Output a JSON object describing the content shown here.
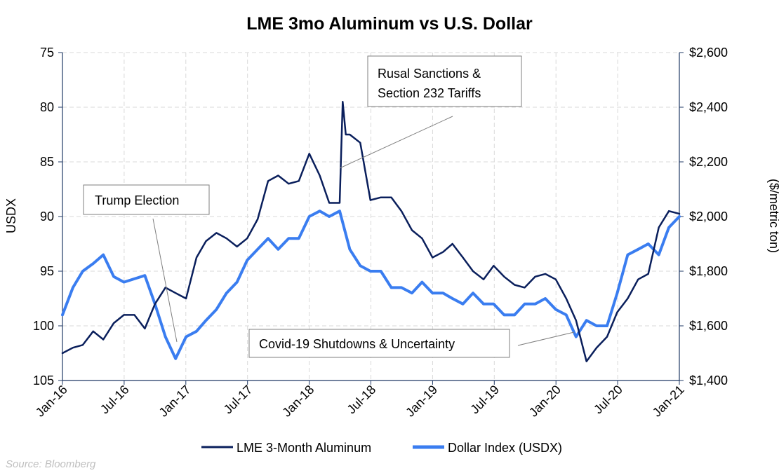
{
  "chart_data": {
    "type": "line",
    "title": "LME 3mo Aluminum vs U.S. Dollar",
    "source": "Source: Bloomberg",
    "x_ticks": [
      "Jan-16",
      "Jul-16",
      "Jan-17",
      "Jul-17",
      "Jan-18",
      "Jul-18",
      "Jan-19",
      "Jul-19",
      "Jan-20",
      "Jul-20",
      "Jan-21"
    ],
    "x_range": [
      "2016-01-01",
      "2021-01-01"
    ],
    "y_left": {
      "label": "USDX",
      "range": [
        75,
        105
      ],
      "inverted": true,
      "ticks": [
        "75",
        "80",
        "85",
        "90",
        "95",
        "100",
        "105"
      ],
      "tick_values": [
        75,
        80,
        85,
        90,
        95,
        100,
        105
      ]
    },
    "y_right": {
      "label": "($/metric ton)",
      "range": [
        1400,
        2600
      ],
      "ticks": [
        "$1,400",
        "$1,600",
        "$1,800",
        "$2,000",
        "$2,200",
        "$2,400",
        "$2,600"
      ],
      "tick_values": [
        1400,
        1600,
        1800,
        2000,
        2200,
        2400,
        2600
      ]
    },
    "grid": true,
    "legend_position": "bottom",
    "colors": {
      "aluminum": "#0a1f5c",
      "dollar": "#3a7df0",
      "grid": "#d9d9d9",
      "axis": "#1f3864"
    },
    "series": [
      {
        "name": "LME 3-Month Aluminum",
        "axis": "right",
        "x": [
          "2016-01-01",
          "2016-02-01",
          "2016-03-01",
          "2016-04-01",
          "2016-05-01",
          "2016-06-01",
          "2016-07-01",
          "2016-08-01",
          "2016-09-01",
          "2016-10-01",
          "2016-11-01",
          "2016-12-01",
          "2017-01-01",
          "2017-02-01",
          "2017-03-01",
          "2017-04-01",
          "2017-05-01",
          "2017-06-01",
          "2017-07-01",
          "2017-08-01",
          "2017-09-01",
          "2017-10-01",
          "2017-11-01",
          "2017-12-01",
          "2018-01-01",
          "2018-02-01",
          "2018-03-01",
          "2018-04-01",
          "2018-04-10",
          "2018-04-19",
          "2018-05-01",
          "2018-06-01",
          "2018-07-01",
          "2018-08-01",
          "2018-09-01",
          "2018-10-01",
          "2018-11-01",
          "2018-12-01",
          "2019-01-01",
          "2019-02-01",
          "2019-03-01",
          "2019-04-01",
          "2019-05-01",
          "2019-06-01",
          "2019-07-01",
          "2019-08-01",
          "2019-09-01",
          "2019-10-01",
          "2019-11-01",
          "2019-12-01",
          "2020-01-01",
          "2020-02-01",
          "2020-03-01",
          "2020-04-01",
          "2020-05-01",
          "2020-06-01",
          "2020-07-01",
          "2020-08-01",
          "2020-09-01",
          "2020-10-01",
          "2020-11-01",
          "2020-12-01",
          "2021-01-01"
        ],
        "values": [
          1500,
          1520,
          1530,
          1580,
          1550,
          1610,
          1640,
          1640,
          1590,
          1680,
          1740,
          1720,
          1700,
          1850,
          1910,
          1940,
          1920,
          1890,
          1920,
          1990,
          2130,
          2150,
          2120,
          2130,
          2230,
          2150,
          2050,
          2050,
          2420,
          2300,
          2300,
          2270,
          2060,
          2070,
          2070,
          2020,
          1950,
          1920,
          1850,
          1870,
          1900,
          1850,
          1800,
          1770,
          1820,
          1780,
          1750,
          1740,
          1780,
          1790,
          1770,
          1700,
          1620,
          1470,
          1520,
          1560,
          1650,
          1700,
          1770,
          1790,
          1960,
          2020,
          2010
        ]
      },
      {
        "name": "Dollar Index (USDX)",
        "axis": "left",
        "x": [
          "2016-01-01",
          "2016-02-01",
          "2016-03-01",
          "2016-04-01",
          "2016-05-01",
          "2016-06-01",
          "2016-07-01",
          "2016-08-01",
          "2016-09-01",
          "2016-10-01",
          "2016-11-01",
          "2016-12-01",
          "2017-01-01",
          "2017-02-01",
          "2017-03-01",
          "2017-04-01",
          "2017-05-01",
          "2017-06-01",
          "2017-07-01",
          "2017-08-01",
          "2017-09-01",
          "2017-10-01",
          "2017-11-01",
          "2017-12-01",
          "2018-01-01",
          "2018-02-01",
          "2018-03-01",
          "2018-04-01",
          "2018-05-01",
          "2018-06-01",
          "2018-07-01",
          "2018-08-01",
          "2018-09-01",
          "2018-10-01",
          "2018-11-01",
          "2018-12-01",
          "2019-01-01",
          "2019-02-01",
          "2019-03-01",
          "2019-04-01",
          "2019-05-01",
          "2019-06-01",
          "2019-07-01",
          "2019-08-01",
          "2019-09-01",
          "2019-10-01",
          "2019-11-01",
          "2019-12-01",
          "2020-01-01",
          "2020-02-01",
          "2020-03-01",
          "2020-04-01",
          "2020-05-01",
          "2020-06-01",
          "2020-07-01",
          "2020-08-01",
          "2020-09-01",
          "2020-10-01",
          "2020-11-01",
          "2020-12-01",
          "2021-01-01"
        ],
        "values": [
          99,
          96.5,
          95,
          94.3,
          93.5,
          95.5,
          96,
          95.7,
          95.4,
          98,
          101,
          103,
          101,
          100.5,
          99.5,
          98.5,
          97,
          96,
          94,
          93,
          92,
          93,
          92,
          92,
          90,
          89.5,
          90,
          89.5,
          93,
          94.5,
          95,
          95,
          96.5,
          96.5,
          97,
          96,
          97,
          97,
          97.5,
          98,
          97,
          98,
          98,
          99,
          99,
          98,
          98,
          97.5,
          98.5,
          99,
          101,
          99.5,
          100,
          100,
          97,
          93.5,
          93,
          92.5,
          93.5,
          91,
          90
        ]
      }
    ],
    "annotations": [
      {
        "text": "Trump Election"
      },
      {
        "text": "Rusal Sanctions &",
        "text2": "Section 232 Tariffs"
      },
      {
        "text": "Covid-19 Shutdowns & Uncertainty"
      }
    ]
  }
}
